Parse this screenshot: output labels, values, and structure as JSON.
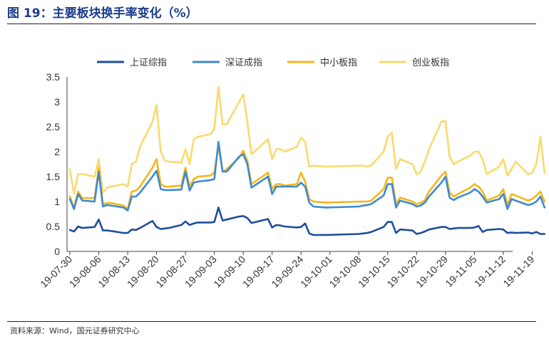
{
  "header": {
    "title": "图 19：主要板块换手率变化（%）"
  },
  "footer": {
    "source": "资料来源：Wind，国元证券研究中心"
  },
  "chart_data": {
    "type": "line",
    "title": "图 19：主要板块换手率变化（%）",
    "ylim": [
      0,
      3.5
    ],
    "yticks": [
      "0",
      "0.5",
      "1",
      "1.5",
      "2",
      "2.5",
      "3",
      "3.5"
    ],
    "xtick_labels": [
      "19-07-30",
      "19-08-06",
      "19-08-13",
      "19-08-20",
      "19-08-27",
      "19-09-03",
      "19-09-10",
      "19-09-17",
      "19-09-24",
      "19-10-01",
      "19-10-08",
      "19-10-15",
      "19-10-22",
      "19-10-29",
      "19-11-05",
      "19-11-12",
      "19-11-19"
    ],
    "legend_position": "top",
    "x": [
      "2019-07-30",
      "2019-07-31",
      "2019-08-01",
      "2019-08-02",
      "2019-08-05",
      "2019-08-06",
      "2019-08-07",
      "2019-08-08",
      "2019-08-09",
      "2019-08-12",
      "2019-08-13",
      "2019-08-14",
      "2019-08-15",
      "2019-08-16",
      "2019-08-19",
      "2019-08-20",
      "2019-08-21",
      "2019-08-22",
      "2019-08-23",
      "2019-08-26",
      "2019-08-27",
      "2019-08-28",
      "2019-08-29",
      "2019-08-30",
      "2019-09-02",
      "2019-09-03",
      "2019-09-04",
      "2019-09-05",
      "2019-09-06",
      "2019-09-09",
      "2019-09-10",
      "2019-09-11",
      "2019-09-12",
      "2019-09-16",
      "2019-09-17",
      "2019-09-18",
      "2019-09-19",
      "2019-09-20",
      "2019-09-23",
      "2019-09-24",
      "2019-09-25",
      "2019-09-26",
      "2019-09-27",
      "2019-09-30",
      "2019-10-08",
      "2019-10-09",
      "2019-10-10",
      "2019-10-11",
      "2019-10-14",
      "2019-10-15",
      "2019-10-16",
      "2019-10-17",
      "2019-10-18",
      "2019-10-21",
      "2019-10-22",
      "2019-10-23",
      "2019-10-24",
      "2019-10-25",
      "2019-10-28",
      "2019-10-29",
      "2019-10-30",
      "2019-10-31",
      "2019-11-01",
      "2019-11-04",
      "2019-11-05",
      "2019-11-06",
      "2019-11-07",
      "2019-11-08",
      "2019-11-11",
      "2019-11-12",
      "2019-11-13",
      "2019-11-14",
      "2019-11-15",
      "2019-11-18",
      "2019-11-19",
      "2019-11-20",
      "2019-11-21",
      "2019-11-22"
    ],
    "series": [
      {
        "name": "上证综指",
        "color": "#1f4e9c",
        "values": [
          0.43,
          0.4,
          0.5,
          0.47,
          0.49,
          0.64,
          0.42,
          0.42,
          0.41,
          0.37,
          0.37,
          0.44,
          0.43,
          0.47,
          0.61,
          0.49,
          0.45,
          0.46,
          0.47,
          0.53,
          0.6,
          0.53,
          0.56,
          0.58,
          0.58,
          0.59,
          0.88,
          0.62,
          0.64,
          0.7,
          0.71,
          0.67,
          0.57,
          0.65,
          0.48,
          0.53,
          0.52,
          0.5,
          0.48,
          0.49,
          0.56,
          0.36,
          0.33,
          0.33,
          0.35,
          0.36,
          0.37,
          0.39,
          0.49,
          0.59,
          0.59,
          0.37,
          0.44,
          0.42,
          0.35,
          0.37,
          0.4,
          0.44,
          0.49,
          0.49,
          0.45,
          0.46,
          0.47,
          0.47,
          0.48,
          0.51,
          0.39,
          0.43,
          0.45,
          0.44,
          0.37,
          0.38,
          0.37,
          0.38,
          0.36,
          0.39,
          0.35,
          0.35
        ]
      },
      {
        "name": "深证成指",
        "color": "#3d8bd1",
        "values": [
          1.05,
          0.85,
          1.15,
          1.02,
          1.0,
          1.6,
          0.9,
          0.93,
          0.92,
          0.88,
          0.82,
          1.1,
          1.1,
          1.18,
          1.5,
          1.62,
          1.25,
          1.23,
          1.23,
          1.24,
          1.6,
          1.22,
          1.38,
          1.4,
          1.43,
          1.45,
          2.2,
          1.6,
          1.6,
          1.9,
          1.95,
          1.75,
          1.28,
          1.5,
          1.15,
          1.3,
          1.3,
          1.3,
          1.3,
          1.38,
          1.3,
          0.98,
          0.9,
          0.88,
          0.9,
          0.92,
          0.93,
          0.95,
          1.12,
          1.35,
          1.35,
          0.88,
          1.02,
          0.95,
          0.9,
          0.92,
          0.98,
          1.1,
          1.38,
          1.5,
          1.08,
          1.03,
          1.08,
          1.18,
          1.25,
          1.2,
          1.1,
          0.98,
          1.05,
          1.15,
          0.85,
          1.05,
          1.02,
          0.93,
          0.95,
          1.0,
          1.1,
          0.88
        ]
      },
      {
        "name": "中小板指",
        "color": "#f5b61a",
        "values": [
          1.1,
          0.88,
          1.2,
          1.07,
          1.07,
          1.68,
          0.95,
          0.97,
          0.97,
          0.92,
          0.85,
          1.2,
          1.22,
          1.3,
          1.68,
          1.85,
          1.35,
          1.3,
          1.3,
          1.32,
          1.68,
          1.3,
          1.45,
          1.5,
          1.52,
          1.58,
          2.1,
          1.6,
          1.65,
          1.88,
          2.02,
          1.82,
          1.35,
          1.58,
          1.25,
          1.35,
          1.35,
          1.32,
          1.35,
          1.58,
          1.4,
          1.05,
          1.0,
          0.98,
          1.0,
          1.0,
          1.0,
          1.02,
          1.25,
          1.48,
          1.48,
          0.95,
          1.08,
          1.0,
          0.95,
          0.97,
          1.03,
          1.2,
          1.52,
          1.6,
          1.18,
          1.1,
          1.15,
          1.28,
          1.35,
          1.3,
          1.2,
          1.02,
          1.12,
          1.25,
          0.93,
          1.15,
          1.12,
          1.02,
          1.05,
          1.12,
          1.2,
          1.0
        ]
      },
      {
        "name": "创业板指",
        "color": "#fbd96c",
        "values": [
          1.65,
          1.15,
          1.55,
          1.55,
          1.5,
          1.85,
          1.18,
          1.28,
          1.3,
          1.35,
          1.3,
          1.75,
          1.8,
          2.1,
          2.6,
          2.93,
          2.0,
          1.82,
          1.8,
          1.78,
          2.05,
          1.75,
          2.25,
          2.3,
          2.35,
          2.45,
          3.3,
          2.55,
          2.55,
          3.0,
          3.15,
          2.6,
          1.95,
          2.25,
          1.85,
          2.05,
          2.05,
          2.0,
          2.1,
          2.28,
          2.2,
          1.7,
          1.72,
          1.7,
          1.72,
          1.72,
          1.7,
          1.72,
          2.0,
          2.3,
          2.38,
          1.65,
          1.85,
          1.75,
          1.55,
          1.6,
          1.8,
          2.05,
          2.6,
          2.62,
          1.9,
          1.75,
          1.8,
          1.92,
          2.0,
          2.0,
          1.85,
          1.55,
          1.7,
          1.85,
          1.52,
          1.65,
          1.8,
          1.55,
          1.58,
          1.75,
          2.3,
          1.57
        ]
      }
    ]
  }
}
